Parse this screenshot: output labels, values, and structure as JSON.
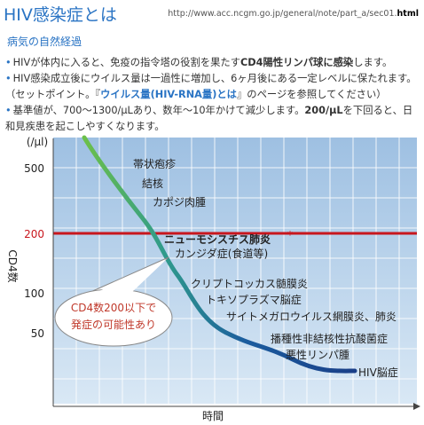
{
  "header": {
    "title": "HIV感染症とは",
    "url_base": "http://www.acc.ncgm.go.jp/general/note/part_a/sec01.",
    "url_ext": "html"
  },
  "section_title": "病気の自然経過",
  "bullets": [
    [
      {
        "text": "HIVが体内に入ると、免疫の指令塔の役割を果たす"
      },
      {
        "text": "CD4陽性リンパ球に感染",
        "style": "bold"
      },
      {
        "text": "します。"
      }
    ],
    [
      {
        "text": "HIV感染成立後にウイルス量は一過性に増加し、6ヶ月後にある一定レベルに保たれます。（セットポイント。『"
      },
      {
        "text": "ウイルス量(HIV-RNA量)とは",
        "style": "link"
      },
      {
        "text": "』のページを参照してください）"
      }
    ],
    [
      {
        "text": "基準値が、700〜1300/μLあり、数年〜10年かけて減少します。"
      },
      {
        "text": "200/μL",
        "style": "bold"
      },
      {
        "text": "を下回ると、日和見疾患を起こしやすくなります。"
      }
    ]
  ],
  "figure": {
    "y_unit": "(/μl)",
    "y_title": "CD4数",
    "x_title": "時間",
    "y_labels": [
      "500",
      "200",
      "100",
      "50"
    ],
    "diseases": [
      "帯状疱疹",
      "結核",
      "カポジ肉腫",
      "ニューモシスチス肺炎",
      "カンジダ症(食道等)",
      "クリプトコッカス髄膜炎",
      "トキソプラズマ脳症",
      "サイトメガロウイルス網膜炎、肺炎",
      "播種性非結核性抗酸菌症",
      "悪性リンパ腫",
      "HIV脳症"
    ],
    "asterisk": "*",
    "callout": [
      "CD4数200以下で",
      "発症の可能性あり"
    ]
  }
}
